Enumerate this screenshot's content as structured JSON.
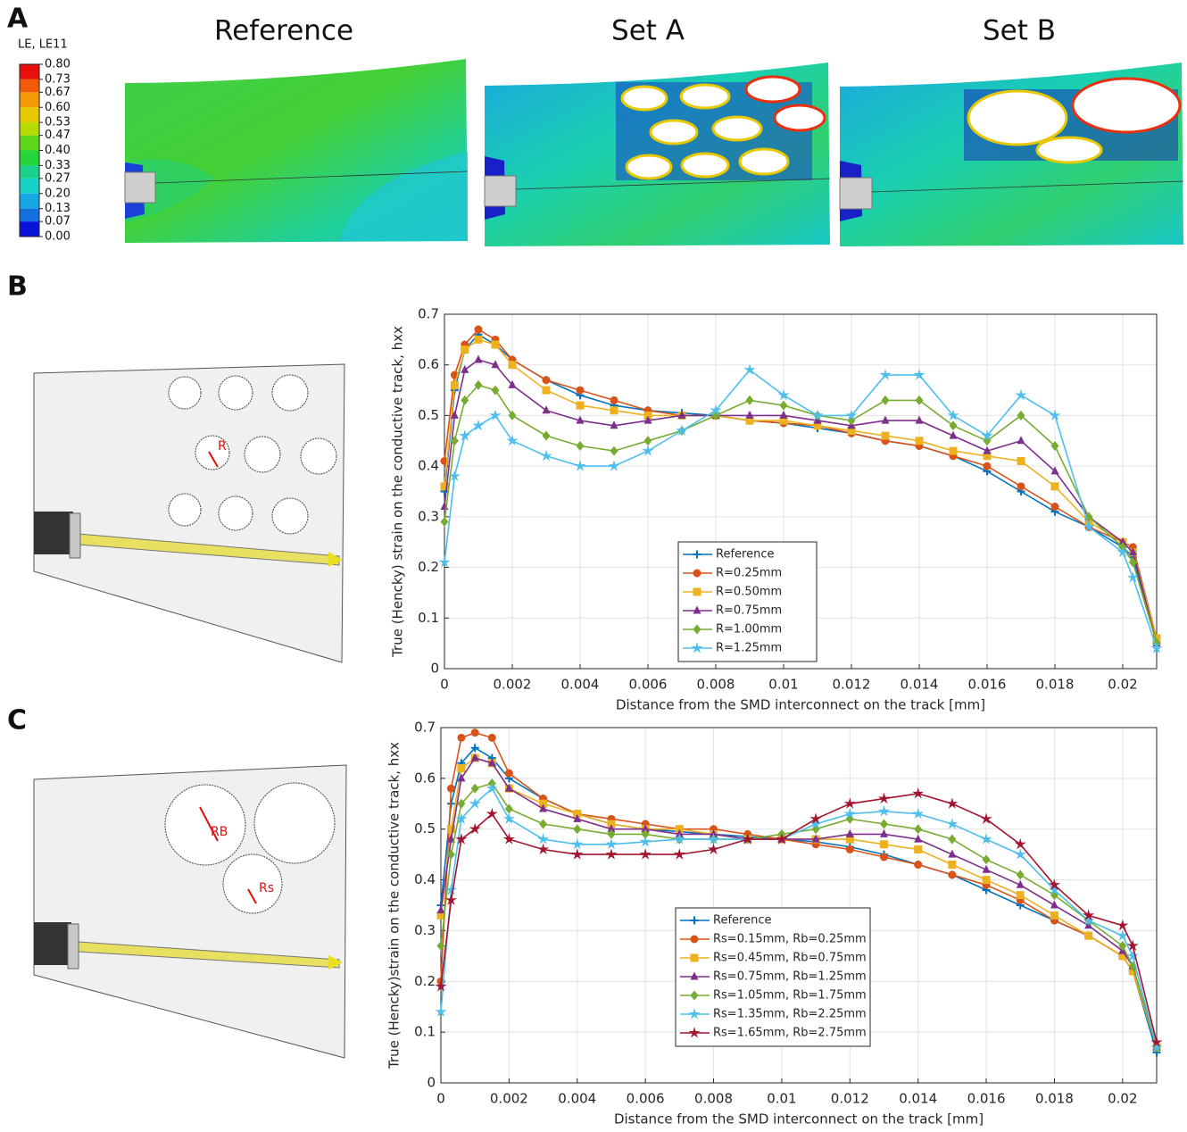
{
  "panel_labels": [
    "A",
    "B",
    "C"
  ],
  "contour": {
    "legend_title": "LE, LE11",
    "legend_ticks": [
      {
        "value": 0.8,
        "label": "0.80"
      },
      {
        "value": 0.73,
        "label": "0.73"
      },
      {
        "value": 0.67,
        "label": "0.67"
      },
      {
        "value": 0.6,
        "label": "0.60"
      },
      {
        "value": 0.53,
        "label": "0.53"
      },
      {
        "value": 0.47,
        "label": "0.47"
      },
      {
        "value": 0.4,
        "label": "0.40"
      },
      {
        "value": 0.33,
        "label": "0.33"
      },
      {
        "value": 0.27,
        "label": "0.27"
      },
      {
        "value": 0.2,
        "label": "0.20"
      },
      {
        "value": 0.13,
        "label": "0.13"
      },
      {
        "value": 0.07,
        "label": "0.07"
      },
      {
        "value": 0,
        "label": "0.00"
      }
    ],
    "colors": [
      "#e8100c",
      "#f05a08",
      "#f49a06",
      "#e8c800",
      "#b8dc00",
      "#5ed61a",
      "#24d63a",
      "#1ad28c",
      "#18d0c8",
      "#16a8e6",
      "#1470e0",
      "#0a14d8"
    ],
    "titles": [
      "Reference",
      "Set A",
      "Set B"
    ]
  },
  "schematics": {
    "set_a_label": "R",
    "set_b_labels": [
      "RB",
      "Rs"
    ]
  },
  "chart_data": [
    {
      "type": "line",
      "xlabel": "Distance from the SMD interconnect on the track [mm]",
      "ylabel": "True (Hencky) strain on the conductive track, hxx",
      "x": [
        0,
        0.0003,
        0.0006,
        0.001,
        0.0015,
        0.002,
        0.003,
        0.004,
        0.005,
        0.006,
        0.007,
        0.008,
        0.009,
        0.01,
        0.011,
        0.012,
        0.013,
        0.014,
        0.015,
        0.016,
        0.017,
        0.018,
        0.019,
        0.02,
        0.0203,
        0.021
      ],
      "xlim": [
        0,
        0.021
      ],
      "xticks": [
        0,
        0.002,
        0.004,
        0.006,
        0.008,
        0.01,
        0.012,
        0.014,
        0.016,
        0.018,
        0.02
      ],
      "ylim": [
        0,
        0.7
      ],
      "yticks": [
        0,
        0.1,
        0.2,
        0.3,
        0.4,
        0.5,
        0.6,
        0.7
      ],
      "grid": true,
      "series": [
        {
          "name": "Reference",
          "color": "#0072bd",
          "marker": "plus",
          "values": [
            0.35,
            0.55,
            0.63,
            0.66,
            0.64,
            0.61,
            0.57,
            0.54,
            0.52,
            0.51,
            0.505,
            0.5,
            0.49,
            0.485,
            0.475,
            0.465,
            0.45,
            0.44,
            0.42,
            0.39,
            0.35,
            0.31,
            0.28,
            0.24,
            0.22,
            0.05
          ]
        },
        {
          "name": "R=0.25mm",
          "color": "#d95319",
          "marker": "circle",
          "values": [
            0.41,
            0.58,
            0.64,
            0.67,
            0.65,
            0.61,
            0.57,
            0.55,
            0.53,
            0.51,
            0.5,
            0.5,
            0.49,
            0.485,
            0.48,
            0.465,
            0.45,
            0.44,
            0.42,
            0.4,
            0.36,
            0.32,
            0.28,
            0.25,
            0.24,
            0.06
          ]
        },
        {
          "name": "R=0.50mm",
          "color": "#edb120",
          "marker": "square",
          "values": [
            0.36,
            0.56,
            0.63,
            0.65,
            0.64,
            0.6,
            0.55,
            0.52,
            0.51,
            0.5,
            0.5,
            0.5,
            0.49,
            0.49,
            0.48,
            0.47,
            0.46,
            0.45,
            0.43,
            0.42,
            0.41,
            0.36,
            0.29,
            0.25,
            0.23,
            0.06
          ]
        },
        {
          "name": "R=0.75mm",
          "color": "#7e2f8e",
          "marker": "triangle",
          "values": [
            0.32,
            0.5,
            0.59,
            0.61,
            0.6,
            0.56,
            0.51,
            0.49,
            0.48,
            0.49,
            0.5,
            0.5,
            0.5,
            0.5,
            0.49,
            0.48,
            0.49,
            0.49,
            0.46,
            0.43,
            0.45,
            0.39,
            0.3,
            0.25,
            0.23,
            0.05
          ]
        },
        {
          "name": "R=1.00mm",
          "color": "#77ac30",
          "marker": "diamond",
          "values": [
            0.29,
            0.45,
            0.53,
            0.56,
            0.55,
            0.5,
            0.46,
            0.44,
            0.43,
            0.45,
            0.47,
            0.5,
            0.53,
            0.52,
            0.5,
            0.49,
            0.53,
            0.53,
            0.48,
            0.45,
            0.5,
            0.44,
            0.3,
            0.24,
            0.21,
            0.05
          ]
        },
        {
          "name": "R=1.25mm",
          "color": "#4dbeee",
          "marker": "star",
          "values": [
            0.21,
            0.38,
            0.46,
            0.48,
            0.5,
            0.45,
            0.42,
            0.4,
            0.4,
            0.43,
            0.47,
            0.51,
            0.59,
            0.54,
            0.5,
            0.5,
            0.58,
            0.58,
            0.5,
            0.46,
            0.54,
            0.5,
            0.28,
            0.23,
            0.18,
            0.04
          ]
        }
      ]
    },
    {
      "type": "line",
      "xlabel": "Distance from the SMD interconnect on the track [mm]",
      "ylabel": "True (Hencky)strain on the conductive track, hxx",
      "x": [
        0,
        0.0003,
        0.0006,
        0.001,
        0.0015,
        0.002,
        0.003,
        0.004,
        0.005,
        0.006,
        0.007,
        0.008,
        0.009,
        0.01,
        0.011,
        0.012,
        0.013,
        0.014,
        0.015,
        0.016,
        0.017,
        0.018,
        0.019,
        0.02,
        0.0203,
        0.021
      ],
      "xlim": [
        0,
        0.021
      ],
      "xticks": [
        0,
        0.002,
        0.004,
        0.006,
        0.008,
        0.01,
        0.012,
        0.014,
        0.016,
        0.018,
        0.02
      ],
      "ylim": [
        0,
        0.7
      ],
      "yticks": [
        0,
        0.1,
        0.2,
        0.3,
        0.4,
        0.5,
        0.6,
        0.7
      ],
      "grid": true,
      "series": [
        {
          "name": "Reference",
          "color": "#0072bd",
          "marker": "plus",
          "values": [
            0.35,
            0.55,
            0.63,
            0.66,
            0.64,
            0.6,
            0.56,
            0.53,
            0.51,
            0.5,
            0.495,
            0.49,
            0.485,
            0.48,
            0.475,
            0.465,
            0.45,
            0.43,
            0.41,
            0.38,
            0.35,
            0.32,
            0.29,
            0.25,
            0.22,
            0.06
          ]
        },
        {
          "name": "Rs=0.15mm, Rb=0.25mm",
          "color": "#d95319",
          "marker": "circle",
          "values": [
            0.2,
            0.58,
            0.68,
            0.69,
            0.68,
            0.61,
            0.56,
            0.53,
            0.52,
            0.51,
            0.5,
            0.5,
            0.49,
            0.48,
            0.47,
            0.46,
            0.445,
            0.43,
            0.41,
            0.39,
            0.36,
            0.32,
            0.29,
            0.25,
            0.22,
            0.07
          ]
        },
        {
          "name": "Rs=0.45mm, Rb=0.75mm",
          "color": "#edb120",
          "marker": "square",
          "values": [
            0.33,
            0.5,
            0.62,
            0.64,
            0.63,
            0.58,
            0.55,
            0.53,
            0.51,
            0.5,
            0.5,
            0.49,
            0.48,
            0.48,
            0.48,
            0.48,
            0.47,
            0.46,
            0.43,
            0.4,
            0.37,
            0.33,
            0.29,
            0.25,
            0.22,
            0.07
          ]
        },
        {
          "name": "Rs=0.75mm, Rb=1.25mm",
          "color": "#7e2f8e",
          "marker": "triangle",
          "values": [
            0.34,
            0.48,
            0.6,
            0.64,
            0.63,
            0.58,
            0.54,
            0.52,
            0.5,
            0.5,
            0.49,
            0.49,
            0.48,
            0.48,
            0.48,
            0.49,
            0.49,
            0.48,
            0.45,
            0.42,
            0.39,
            0.35,
            0.31,
            0.26,
            0.23,
            0.07
          ]
        },
        {
          "name": "Rs=1.05mm, Rb=1.75mm",
          "color": "#77ac30",
          "marker": "diamond",
          "values": [
            0.27,
            0.45,
            0.55,
            0.58,
            0.59,
            0.54,
            0.51,
            0.5,
            0.49,
            0.49,
            0.48,
            0.48,
            0.48,
            0.49,
            0.5,
            0.52,
            0.51,
            0.5,
            0.48,
            0.44,
            0.41,
            0.37,
            0.32,
            0.27,
            0.23,
            0.07
          ]
        },
        {
          "name": "Rs=1.35mm, Rb=2.25mm",
          "color": "#4dbeee",
          "marker": "star",
          "values": [
            0.14,
            0.38,
            0.52,
            0.55,
            0.58,
            0.52,
            0.48,
            0.47,
            0.47,
            0.475,
            0.48,
            0.48,
            0.48,
            0.48,
            0.51,
            0.53,
            0.535,
            0.53,
            0.51,
            0.48,
            0.45,
            0.38,
            0.32,
            0.29,
            0.25,
            0.07
          ]
        },
        {
          "name": "Rs=1.65mm, Rb=2.75mm",
          "color": "#a2142f",
          "marker": "star",
          "values": [
            0.19,
            0.36,
            0.48,
            0.5,
            0.53,
            0.48,
            0.46,
            0.45,
            0.45,
            0.45,
            0.45,
            0.46,
            0.48,
            0.48,
            0.52,
            0.55,
            0.56,
            0.57,
            0.55,
            0.52,
            0.47,
            0.39,
            0.33,
            0.31,
            0.27,
            0.08
          ]
        }
      ]
    }
  ]
}
